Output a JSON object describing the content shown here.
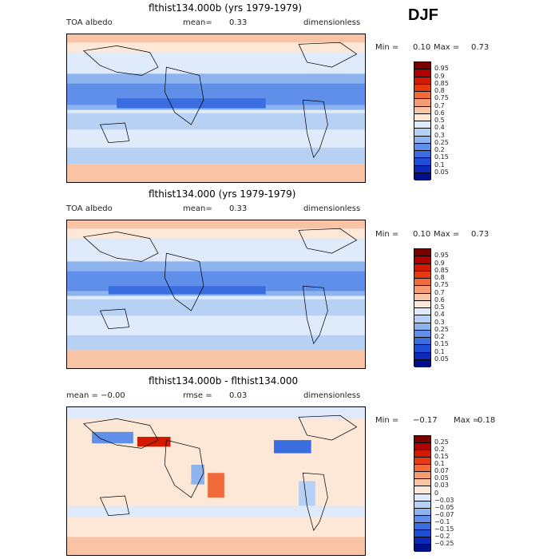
{
  "season": "DJF",
  "panels": [
    {
      "title": "flthist134.000b (yrs 1979-1979)",
      "left": "TOA albedo",
      "mid_label": "mean=",
      "mid_value": "0.33",
      "right": "dimensionless",
      "min_label": "Min =",
      "min_value": "0.10",
      "max_label": "Max =",
      "max_value": "0.73",
      "map_kind": "albedo"
    },
    {
      "title": "flthist134.000 (yrs 1979-1979)",
      "left": "TOA albedo",
      "mid_label": "mean=",
      "mid_value": "0.33",
      "right": "dimensionless",
      "min_label": "Min =",
      "min_value": "0.10",
      "max_label": "Max =",
      "max_value": "0.73",
      "map_kind": "albedo"
    },
    {
      "title": "flthist134.000b - flthist134.000",
      "left": "mean =  −0.00",
      "mid_label": "rmse =",
      "mid_value": "0.03",
      "right": "dimensionless",
      "min_label": "Min =",
      "min_value": "−0.17",
      "max_label": "Max =",
      "max_value": "0.18",
      "map_kind": "diff"
    }
  ],
  "colorbars": {
    "albedo": {
      "labels": [
        "0.95",
        "0.9",
        "0.85",
        "0.8",
        "0.75",
        "0.7",
        "0.6",
        "0.5",
        "0.4",
        "0.3",
        "0.25",
        "0.2",
        "0.15",
        "0.1",
        "0.05"
      ],
      "colors": [
        "#7a0000",
        "#b00000",
        "#d31a00",
        "#e83a10",
        "#f06a3a",
        "#f59c72",
        "#f9c4a6",
        "#fde8d8",
        "#dfeafa",
        "#b7d1f5",
        "#8eb4ef",
        "#5f8fe8",
        "#3a6ee0",
        "#1f4fd6",
        "#0c2ab8",
        "#00108a"
      ]
    },
    "diff": {
      "labels": [
        "0.25",
        "0.2",
        "0.15",
        "0.1",
        "0.07",
        "0.05",
        "0.03",
        "0",
        "−0.03",
        "−0.05",
        "−0.07",
        "−0.1",
        "−0.15",
        "−0.2",
        "−0.25"
      ],
      "colors": [
        "#7a0000",
        "#b00000",
        "#d31a00",
        "#e83a10",
        "#f06a3a",
        "#f59c72",
        "#f9c4a6",
        "#fde8d8",
        "#dfeafa",
        "#b7d1f5",
        "#8eb4ef",
        "#5f8fe8",
        "#3a6ee0",
        "#1f4fd6",
        "#0c2ab8",
        "#00108a"
      ]
    }
  },
  "chart_data": [
    {
      "type": "heatmap",
      "title": "flthist134.000b (yrs 1979-1979)",
      "variable": "TOA albedo",
      "units": "dimensionless",
      "mean": 0.33,
      "min": 0.1,
      "max": 0.73,
      "levels": [
        0.05,
        0.1,
        0.15,
        0.2,
        0.25,
        0.3,
        0.4,
        0.5,
        0.6,
        0.7,
        0.75,
        0.8,
        0.85,
        0.9,
        0.95
      ]
    },
    {
      "type": "heatmap",
      "title": "flthist134.000 (yrs 1979-1979)",
      "variable": "TOA albedo",
      "units": "dimensionless",
      "mean": 0.33,
      "min": 0.1,
      "max": 0.73,
      "levels": [
        0.05,
        0.1,
        0.15,
        0.2,
        0.25,
        0.3,
        0.4,
        0.5,
        0.6,
        0.7,
        0.75,
        0.8,
        0.85,
        0.9,
        0.95
      ]
    },
    {
      "type": "heatmap",
      "title": "flthist134.000b - flthist134.000",
      "units": "dimensionless",
      "mean": -0.0,
      "rmse": 0.03,
      "min": -0.17,
      "max": 0.18,
      "levels": [
        -0.25,
        -0.2,
        -0.15,
        -0.1,
        -0.07,
        -0.05,
        -0.03,
        0,
        0.03,
        0.05,
        0.07,
        0.1,
        0.15,
        0.2,
        0.25
      ]
    }
  ]
}
